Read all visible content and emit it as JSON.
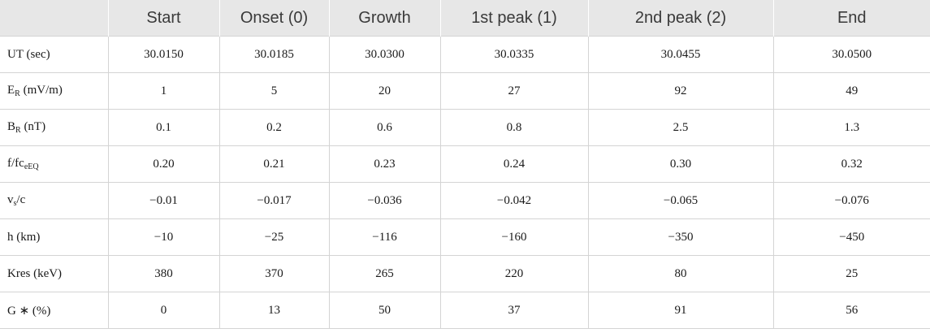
{
  "table": {
    "headers": [
      "",
      "Start",
      "Onset (0)",
      "Growth",
      "1st peak (1)",
      "2nd peak (2)",
      "End"
    ],
    "rows": [
      {
        "label": {
          "main": "UT (sec)",
          "sub": "",
          "rest": ""
        },
        "cells": [
          "30.0150",
          "30.0185",
          "30.0300",
          "30.0335",
          "30.0455",
          "30.0500"
        ]
      },
      {
        "label": {
          "main": "E",
          "sub": "R",
          "rest": " (mV/m)"
        },
        "cells": [
          "1",
          "5",
          "20",
          "27",
          "92",
          "49"
        ]
      },
      {
        "label": {
          "main": "B",
          "sub": "R",
          "rest": " (nT)"
        },
        "cells": [
          "0.1",
          "0.2",
          "0.6",
          "0.8",
          "2.5",
          "1.3"
        ]
      },
      {
        "label": {
          "main": "f/fc",
          "sub": "eEQ",
          "rest": ""
        },
        "cells": [
          "0.20",
          "0.21",
          "0.23",
          "0.24",
          "0.30",
          "0.32"
        ]
      },
      {
        "label": {
          "main": "v",
          "sub": "s",
          "rest": "/c"
        },
        "cells": [
          "−0.01",
          "−0.017",
          "−0.036",
          "−0.042",
          "−0.065",
          "−0.076"
        ]
      },
      {
        "label": {
          "main": "h (km)",
          "sub": "",
          "rest": ""
        },
        "cells": [
          "−10",
          "−25",
          "−116",
          "−160",
          "−350",
          "−450"
        ]
      },
      {
        "label": {
          "main": "Kres (keV)",
          "sub": "",
          "rest": ""
        },
        "cells": [
          "380",
          "370",
          "265",
          "220",
          "80",
          "25"
        ]
      },
      {
        "label": {
          "main": "G ∗ (%)",
          "sub": "",
          "rest": ""
        },
        "cells": [
          "0",
          "13",
          "50",
          "37",
          "91",
          "56"
        ]
      }
    ]
  }
}
